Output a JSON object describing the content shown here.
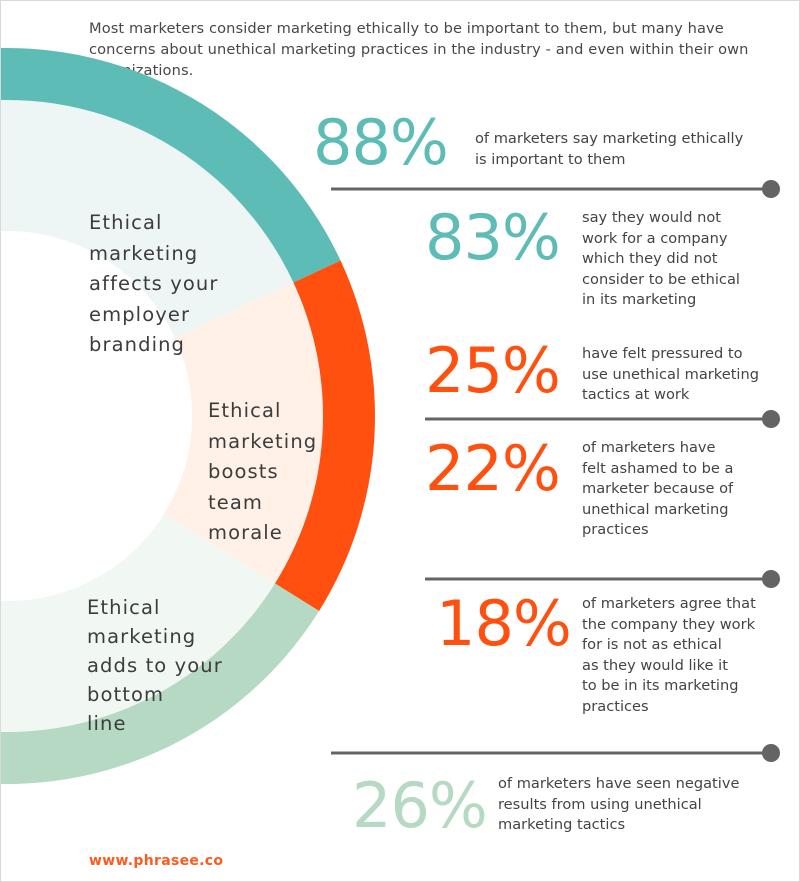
{
  "intro": "Most marketers consider marketing ethically to be important to them, but many have concerns about unethical marketing practices in the industry - and even within their own organizations.",
  "colors": {
    "teal": "#5ebcb7",
    "orange": "#ff5010",
    "green": "#b5d9c2",
    "teal_light": "#eef6f5",
    "orange_light": "#fff0e8",
    "green_light": "#f1f8f3",
    "line": "#646464"
  },
  "segments": [
    {
      "lines": [
        "Ethical",
        "marketing",
        "affects your",
        "employer",
        "branding"
      ],
      "color": "teal"
    },
    {
      "lines": [
        "Ethical",
        "marketing",
        "boosts",
        "team",
        "morale"
      ],
      "color": "orange"
    },
    {
      "lines": [
        "Ethical",
        "marketing",
        "adds to your",
        "bottom",
        "line"
      ],
      "color": "green"
    }
  ],
  "stats": [
    {
      "value": "88%",
      "lines": [
        "of marketers say marketing ethically",
        "is important to them"
      ],
      "color": "teal"
    },
    {
      "value": "83%",
      "lines": [
        "say they would not",
        "work for a company",
        "which they did not",
        "consider to be ethical",
        "in its marketing"
      ],
      "color": "teal"
    },
    {
      "value": "25%",
      "lines": [
        "have felt pressured to",
        "use unethical marketing",
        "tactics at work"
      ],
      "color": "orange"
    },
    {
      "value": "22%",
      "lines": [
        "of marketers have",
        "felt ashamed to be a",
        "marketer because of",
        "unethical marketing",
        "practices"
      ],
      "color": "orange"
    },
    {
      "value": "18%",
      "lines": [
        "of marketers agree that",
        "the company they work",
        "for is not as ethical",
        "as they would like it",
        "to be in its marketing",
        "practices"
      ],
      "color": "orange"
    },
    {
      "value": "26%",
      "lines": [
        "of marketers have seen negative",
        "results from using unethical",
        "marketing tactics"
      ],
      "color": "green"
    }
  ],
  "footer": "www.phrasee.co"
}
